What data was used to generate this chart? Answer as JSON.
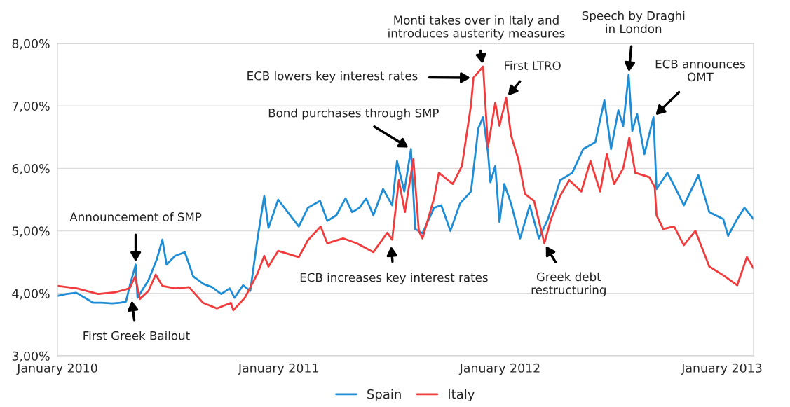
{
  "chart_data": {
    "type": "line",
    "xlim": [
      "2010-01-01",
      "2013-02-22"
    ],
    "xticks": [
      {
        "value": "2010-01-01",
        "label": "January 2010"
      },
      {
        "value": "2011-01-01",
        "label": "January 2011"
      },
      {
        "value": "2012-01-01",
        "label": "January 2012"
      },
      {
        "value": "2013-01-01",
        "label": "January 2013"
      }
    ],
    "ylim": [
      3,
      8
    ],
    "yticks": [
      {
        "value": 3,
        "label": "3,00%"
      },
      {
        "value": 4,
        "label": "4,00%"
      },
      {
        "value": 5,
        "label": "5,00%"
      },
      {
        "value": 6,
        "label": "6,00%"
      },
      {
        "value": 7,
        "label": "7,00%"
      },
      {
        "value": 8,
        "label": "8,00%"
      }
    ],
    "grid": "y",
    "legend": "bottom",
    "marker": "none",
    "line_style": "solid",
    "series": [
      {
        "name": "Spain",
        "color": "#1f8dd6",
        "x": [
          "2010-01-01",
          "2010-01-16",
          "2010-02-01",
          "2010-02-15",
          "2010-03-01",
          "2010-03-15",
          "2010-04-01",
          "2010-04-15",
          "2010-04-24",
          "2010-05-01",
          "2010-05-10",
          "2010-05-13",
          "2010-05-31",
          "2010-06-14",
          "2010-06-23",
          "2010-06-30",
          "2010-07-14",
          "2010-07-30",
          "2010-08-13",
          "2010-08-30",
          "2010-09-13",
          "2010-09-28",
          "2010-10-12",
          "2010-10-20",
          "2010-11-03",
          "2010-11-15",
          "2010-11-27",
          "2010-12-08",
          "2010-12-15",
          "2010-12-31",
          "2011-02-03",
          "2011-02-18",
          "2011-03-10",
          "2011-03-22",
          "2011-04-06",
          "2011-04-21",
          "2011-05-02",
          "2011-05-14",
          "2011-05-25",
          "2011-06-06",
          "2011-06-22",
          "2011-07-07",
          "2011-07-15",
          "2011-07-27",
          "2011-08-07",
          "2011-08-14",
          "2011-08-26",
          "2011-09-14",
          "2011-09-26",
          "2011-10-11",
          "2011-10-27",
          "2011-11-14",
          "2011-11-26",
          "2011-12-04",
          "2011-12-12",
          "2011-12-16",
          "2011-12-24",
          "2011-12-31",
          "2012-01-08",
          "2012-01-19",
          "2012-02-03",
          "2012-02-19",
          "2012-03-05",
          "2012-03-20",
          "2012-04-09",
          "2012-04-29",
          "2012-05-17",
          "2012-06-06",
          "2012-06-21",
          "2012-07-02",
          "2012-07-14",
          "2012-07-22",
          "2012-07-31",
          "2012-08-06",
          "2012-08-14",
          "2012-08-26",
          "2012-09-10",
          "2012-09-15",
          "2012-10-03",
          "2012-10-19",
          "2012-10-30",
          "2012-11-23",
          "2012-12-11",
          "2013-01-03",
          "2013-01-11",
          "2013-01-26",
          "2013-02-07",
          "2013-02-22"
        ],
        "values": [
          3.96,
          3.99,
          4.01,
          3.93,
          3.85,
          3.85,
          3.84,
          3.85,
          3.87,
          4.15,
          4.46,
          3.93,
          4.21,
          4.55,
          4.86,
          4.46,
          4.6,
          4.66,
          4.27,
          4.15,
          4.1,
          3.99,
          4.08,
          3.93,
          4.13,
          4.04,
          4.88,
          5.56,
          5.05,
          5.5,
          5.07,
          5.37,
          5.48,
          5.16,
          5.25,
          5.52,
          5.3,
          5.37,
          5.52,
          5.25,
          5.67,
          5.41,
          6.12,
          5.63,
          6.31,
          5.03,
          4.96,
          5.37,
          5.41,
          5.0,
          5.44,
          5.63,
          6.64,
          6.82,
          6.26,
          5.78,
          6.04,
          5.14,
          5.75,
          5.44,
          4.88,
          5.41,
          4.88,
          5.19,
          5.81,
          5.93,
          6.31,
          6.42,
          7.09,
          6.31,
          6.93,
          6.68,
          7.5,
          6.6,
          6.87,
          6.23,
          6.82,
          5.67,
          5.93,
          5.63,
          5.41,
          5.89,
          5.3,
          5.19,
          4.92,
          5.19,
          5.37,
          5.19
        ]
      },
      {
        "name": "Italy",
        "color": "#f03c3c",
        "x": [
          "2010-01-01",
          "2010-02-02",
          "2010-03-09",
          "2010-04-07",
          "2010-04-30",
          "2010-05-09",
          "2010-05-17",
          "2010-05-31",
          "2010-06-12",
          "2010-06-23",
          "2010-07-14",
          "2010-08-06",
          "2010-08-29",
          "2010-09-21",
          "2010-10-14",
          "2010-10-18",
          "2010-11-06",
          "2010-11-27",
          "2010-12-08",
          "2010-12-15",
          "2010-12-31",
          "2011-02-03",
          "2011-02-18",
          "2011-03-11",
          "2011-03-22",
          "2011-04-17",
          "2011-05-10",
          "2011-06-06",
          "2011-06-29",
          "2011-07-07",
          "2011-07-18",
          "2011-07-28",
          "2011-08-11",
          "2011-08-20",
          "2011-08-26",
          "2011-09-14",
          "2011-09-22",
          "2011-10-15",
          "2011-10-30",
          "2011-11-14",
          "2011-11-18",
          "2011-12-04",
          "2011-12-12",
          "2011-12-24",
          "2011-12-31",
          "2012-01-11",
          "2012-01-19",
          "2012-01-31",
          "2012-02-11",
          "2012-02-26",
          "2012-03-14",
          "2012-03-25",
          "2012-04-09",
          "2012-04-24",
          "2012-05-14",
          "2012-05-29",
          "2012-06-14",
          "2012-06-25",
          "2012-07-07",
          "2012-07-22",
          "2012-08-01",
          "2012-08-11",
          "2012-09-03",
          "2012-09-12",
          "2012-09-15",
          "2012-09-26",
          "2012-10-14",
          "2012-10-30",
          "2012-11-18",
          "2012-12-11",
          "2013-01-03",
          "2013-01-26",
          "2013-02-11",
          "2013-02-22"
        ],
        "values": [
          4.12,
          4.08,
          3.99,
          4.02,
          4.08,
          4.27,
          3.91,
          4.04,
          4.3,
          4.12,
          4.08,
          4.1,
          3.85,
          3.76,
          3.85,
          3.73,
          3.93,
          4.32,
          4.6,
          4.43,
          4.68,
          4.58,
          4.85,
          5.07,
          4.8,
          4.88,
          4.8,
          4.66,
          4.97,
          4.86,
          5.81,
          5.3,
          6.15,
          5.0,
          4.88,
          5.52,
          5.93,
          5.75,
          6.04,
          7.01,
          7.45,
          7.63,
          6.34,
          7.05,
          6.68,
          7.13,
          6.53,
          6.15,
          5.59,
          5.48,
          4.8,
          5.19,
          5.56,
          5.81,
          5.63,
          6.12,
          5.63,
          6.23,
          5.75,
          6.0,
          6.49,
          5.93,
          5.86,
          5.7,
          5.25,
          5.03,
          5.07,
          4.77,
          5.0,
          4.43,
          4.29,
          4.13,
          4.58,
          4.4
        ]
      }
    ],
    "annotations": [
      {
        "text": "Announcement of SMP",
        "x": "2010-05-10",
        "y": 4.46
      },
      {
        "text": "First Greek Bailout",
        "x": "2010-05-03",
        "y": 3.93
      },
      {
        "text": "ECB increases key interest rates",
        "x": "2011-07-05",
        "y": 4.8
      },
      {
        "text": "Bond purchases through SMP",
        "x": "2011-08-07",
        "y": 6.31
      },
      {
        "text": "ECB lowers key interest rates",
        "x": "2011-11-18",
        "y": 7.45
      },
      {
        "text": "Monti takes over in Italy and\nintroduces austerity measures",
        "x": "2011-12-04",
        "y": 7.63
      },
      {
        "text": "First LTRO",
        "x": "2012-01-11",
        "y": 7.13
      },
      {
        "text": "Greek debt\nrestructuring",
        "x": "2012-03-14",
        "y": 4.8
      },
      {
        "text": "Speech by Draghi\nin London",
        "x": "2012-07-31",
        "y": 7.5
      },
      {
        "text": "ECB announces\nOMT",
        "x": "2012-09-10",
        "y": 6.82
      }
    ]
  }
}
